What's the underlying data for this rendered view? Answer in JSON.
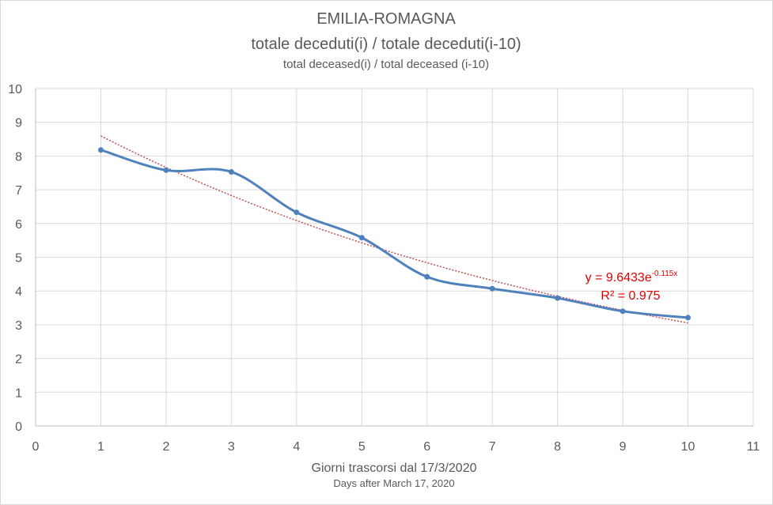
{
  "chart_data": {
    "type": "scatter",
    "title": "EMILIA-ROMAGNA",
    "subtitle": "totale deceduti(i) / totale deceduti(i-10)",
    "subtitle_en": "total deceased(i) / total deceased (i-10)",
    "xlabel": "Giorni trascorsi dal 17/3/2020",
    "xlabel_en": "Days after March 17, 2020",
    "ylabel": "",
    "xlim": [
      0,
      11
    ],
    "ylim": [
      0,
      10
    ],
    "xticks": [
      0,
      1,
      2,
      3,
      4,
      5,
      6,
      7,
      8,
      9,
      10,
      11
    ],
    "yticks": [
      0,
      1,
      2,
      3,
      4,
      5,
      6,
      7,
      8,
      9,
      10
    ],
    "grid": true,
    "legend": "none",
    "series": [
      {
        "color": "#4f81bd",
        "smoothed": true,
        "x": [
          1,
          2,
          3,
          4,
          5,
          6,
          7,
          8,
          9,
          10
        ],
        "y": [
          8.18,
          7.58,
          7.53,
          6.33,
          5.58,
          4.42,
          4.07,
          3.79,
          3.4,
          3.21
        ]
      }
    ],
    "trendline": {
      "type": "exponential",
      "a": 9.6433,
      "b": -0.115,
      "x_range": [
        1,
        10
      ],
      "color": "#c0504d",
      "style": "dotted",
      "equation_prefix": "y = 9.6433e",
      "equation_exponent": "-0.115x",
      "r2_label": "R² = 0.975"
    }
  }
}
